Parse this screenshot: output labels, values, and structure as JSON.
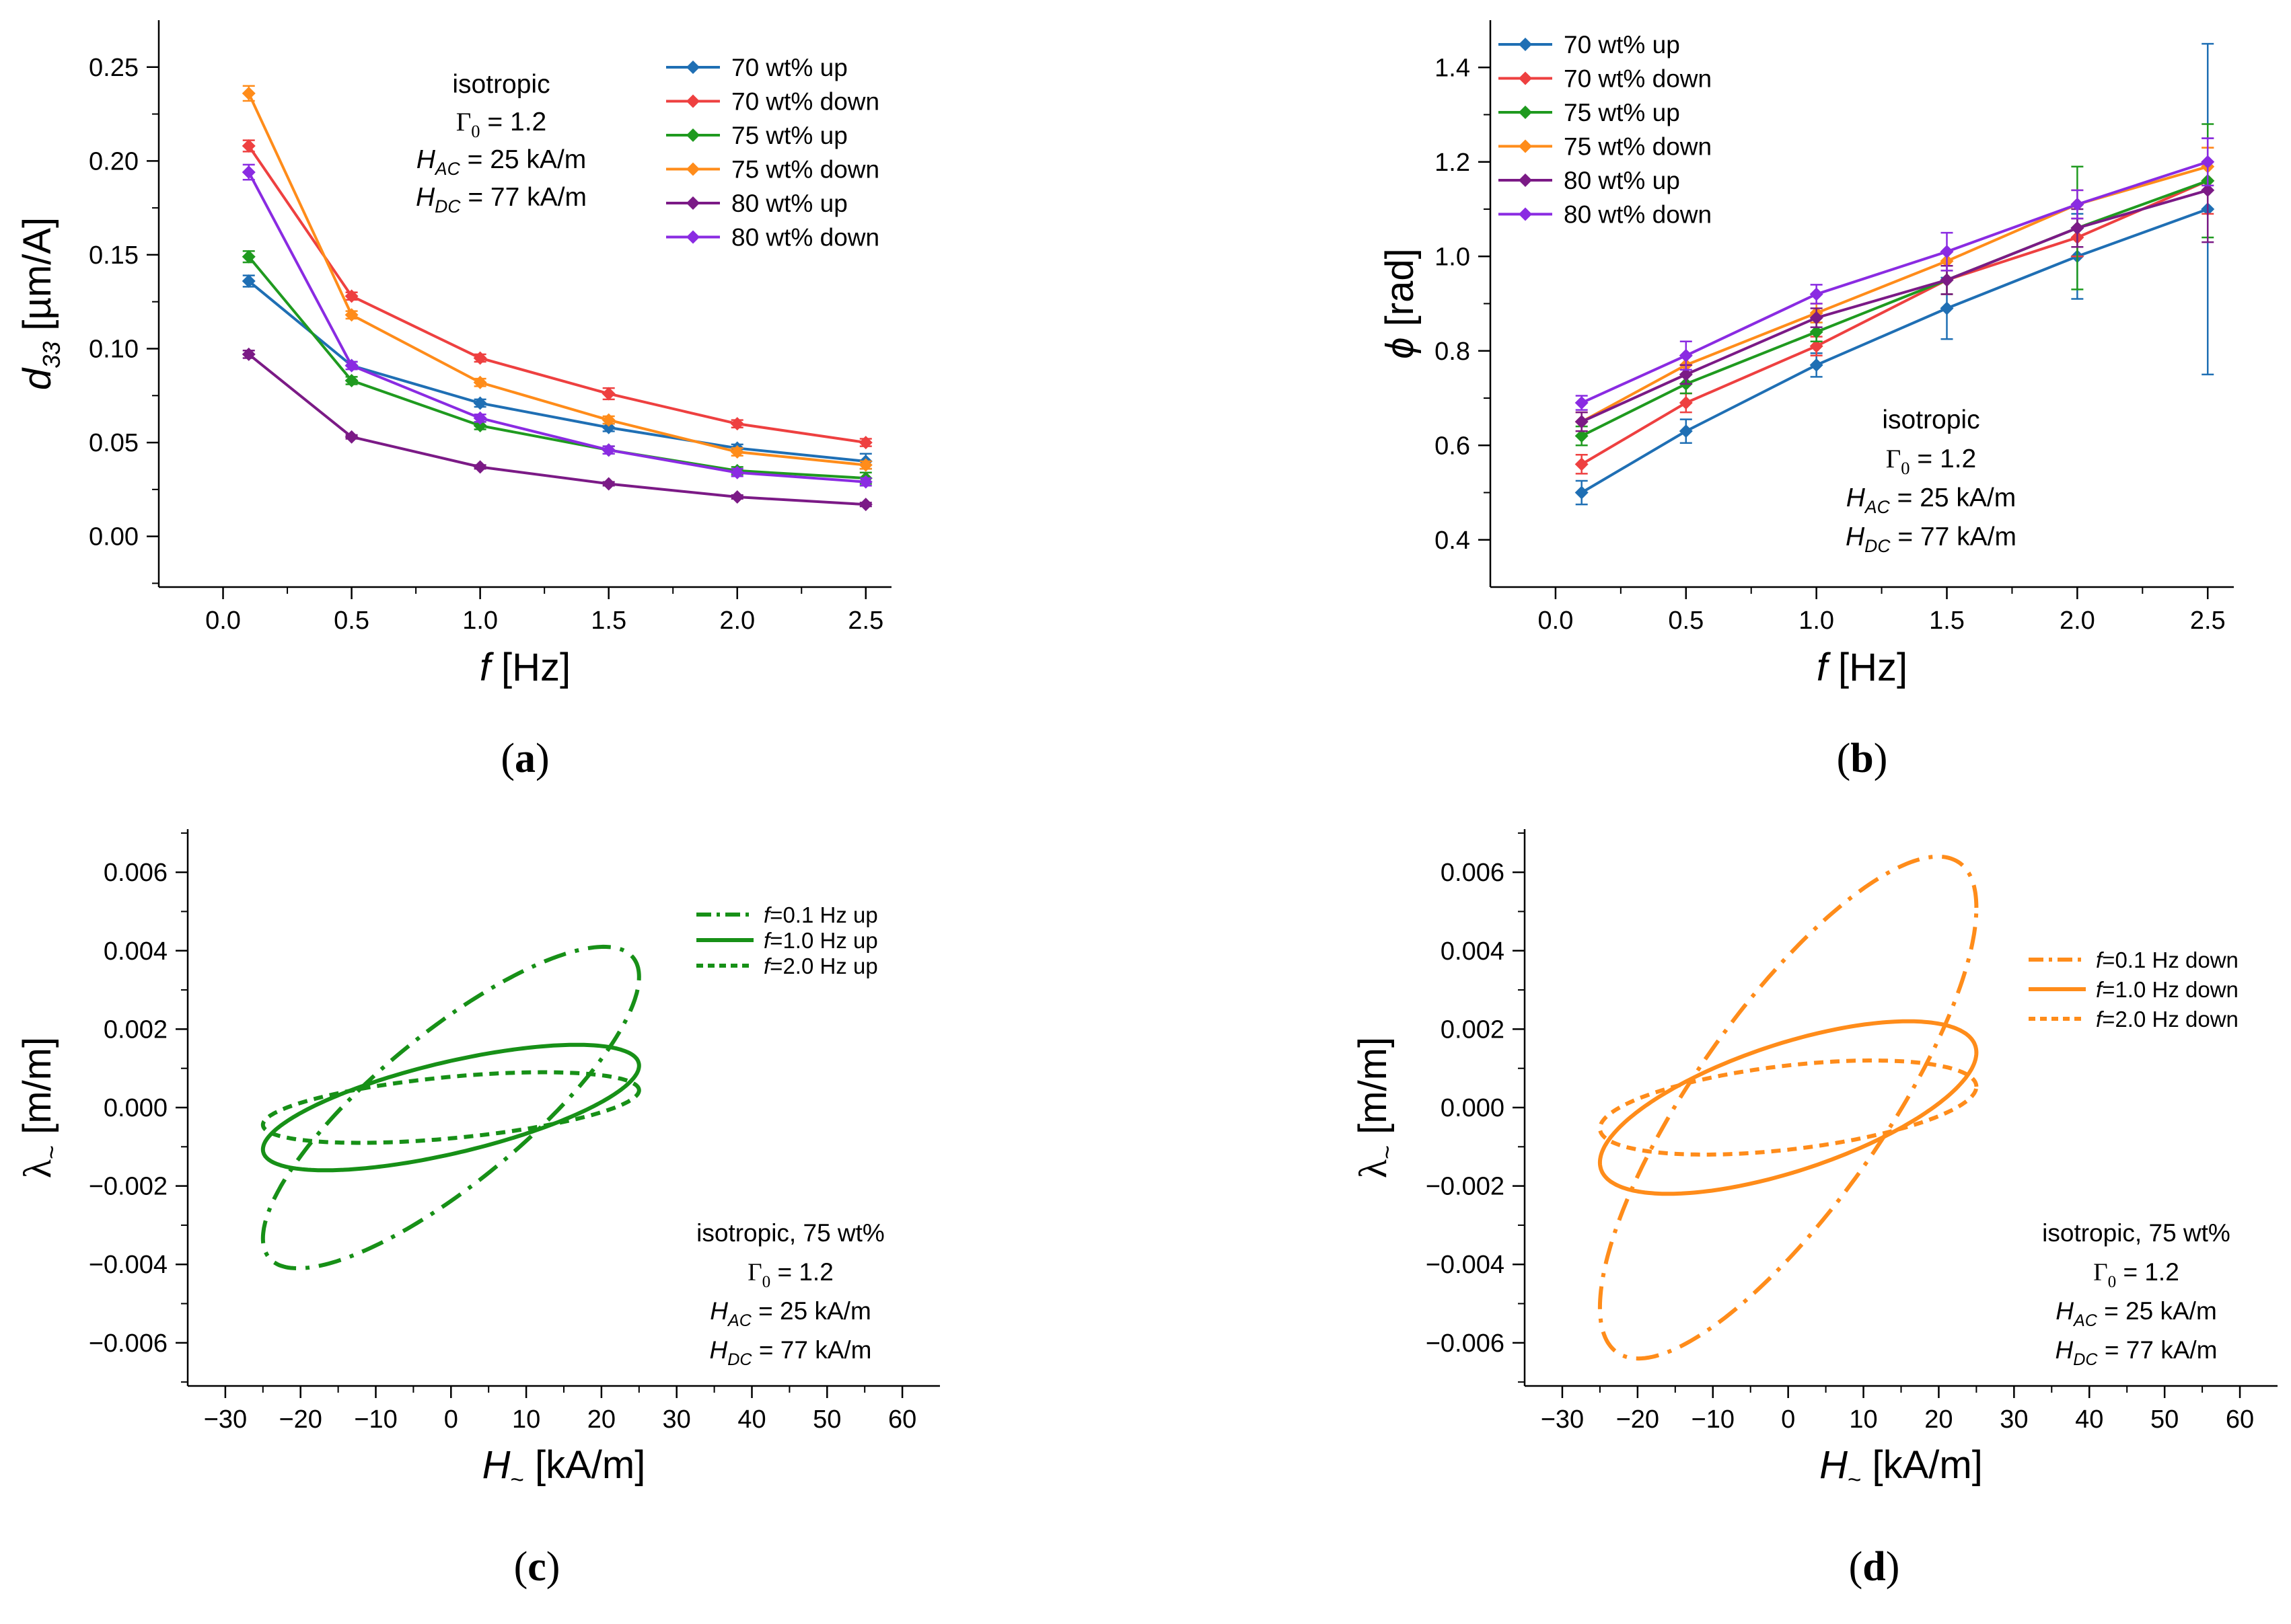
{
  "chart_data": [
    {
      "panel": "a",
      "caption": "(a)",
      "type": "line",
      "x_label": "f",
      "x_unit": "[Hz]",
      "y_label": "d",
      "y_label_sub": "33",
      "y_unit": "[µm/A]",
      "xlim": [
        -0.25,
        2.6
      ],
      "ylim": [
        -0.027,
        0.275
      ],
      "xticks": [
        0.0,
        0.5,
        1.0,
        1.5,
        2.0,
        2.5
      ],
      "xtick_labels": [
        "0.0",
        "0.5",
        "1.0",
        "1.5",
        "2.0",
        "2.5"
      ],
      "yticks": [
        0.0,
        0.05,
        0.1,
        0.15,
        0.2,
        0.25
      ],
      "ytick_labels": [
        "0.00",
        "0.05",
        "0.10",
        "0.15",
        "0.20",
        "0.25"
      ],
      "x": [
        0.1,
        0.5,
        1.0,
        1.5,
        2.0,
        2.5
      ],
      "annotation": [
        "isotropic",
        "Γ₀ = 1.2",
        "H_AC = 25 kA/m",
        "H_DC = 77 kA/m"
      ],
      "legend_position": "top-right",
      "series": [
        {
          "name": "70 wt% up",
          "color": "#1f6fb4",
          "values": [
            0.136,
            0.091,
            0.071,
            0.058,
            0.047,
            0.04
          ],
          "errors": [
            0.003,
            0.002,
            0.002,
            0.002,
            0.002,
            0.004
          ]
        },
        {
          "name": "70 wt% down",
          "color": "#ee4040",
          "values": [
            0.208,
            0.128,
            0.095,
            0.076,
            0.06,
            0.05
          ],
          "errors": [
            0.003,
            0.002,
            0.002,
            0.003,
            0.002,
            0.002
          ]
        },
        {
          "name": "75 wt% up",
          "color": "#1f9a1f",
          "values": [
            0.149,
            0.083,
            0.059,
            0.046,
            0.035,
            0.031
          ],
          "errors": [
            0.003,
            0.002,
            0.002,
            0.002,
            0.002,
            0.003
          ]
        },
        {
          "name": "75 wt% down",
          "color": "#ff8c1a",
          "values": [
            0.236,
            0.118,
            0.082,
            0.062,
            0.045,
            0.038
          ],
          "errors": [
            0.004,
            0.002,
            0.002,
            0.002,
            0.002,
            0.002
          ]
        },
        {
          "name": "80 wt% up",
          "color": "#7b1a86",
          "values": [
            0.097,
            0.053,
            0.037,
            0.028,
            0.021,
            0.017
          ],
          "errors": [
            0.002,
            0.001,
            0.001,
            0.001,
            0.001,
            0.001
          ]
        },
        {
          "name": "80 wt% down",
          "color": "#8a2be2",
          "values": [
            0.194,
            0.091,
            0.063,
            0.046,
            0.034,
            0.029
          ],
          "errors": [
            0.004,
            0.002,
            0.002,
            0.002,
            0.002,
            0.002
          ]
        }
      ]
    },
    {
      "panel": "b",
      "caption": "(b)",
      "type": "line",
      "x_label": "f",
      "x_unit": "[Hz]",
      "y_label": "ϕ",
      "y_unit": "[rad]",
      "xlim": [
        -0.25,
        2.6
      ],
      "ylim": [
        0.3,
        1.5
      ],
      "xticks": [
        0.0,
        0.5,
        1.0,
        1.5,
        2.0,
        2.5
      ],
      "xtick_labels": [
        "0.0",
        "0.5",
        "1.0",
        "1.5",
        "2.0",
        "2.5"
      ],
      "yticks": [
        0.4,
        0.6,
        0.8,
        1.0,
        1.2,
        1.4
      ],
      "ytick_labels": [
        "0.4",
        "0.6",
        "0.8",
        "1.0",
        "1.2",
        "1.4"
      ],
      "x": [
        0.1,
        0.5,
        1.0,
        1.5,
        2.0,
        2.5
      ],
      "annotation": [
        "isotropic",
        "Γ₀ = 1.2",
        "H_AC = 25 kA/m",
        "H_DC = 77 kA/m"
      ],
      "legend_position": "top-left",
      "series": [
        {
          "name": "70 wt% up",
          "color": "#1f6fb4",
          "values": [
            0.5,
            0.63,
            0.77,
            0.89,
            1.0,
            1.1
          ],
          "errors": [
            0.025,
            0.025,
            0.025,
            0.065,
            0.09,
            0.35
          ]
        },
        {
          "name": "70 wt% down",
          "color": "#ee4040",
          "values": [
            0.56,
            0.69,
            0.81,
            0.95,
            1.04,
            1.16
          ],
          "errors": [
            0.02,
            0.02,
            0.02,
            0.03,
            0.04,
            0.07
          ]
        },
        {
          "name": "75 wt% up",
          "color": "#1f9a1f",
          "values": [
            0.62,
            0.73,
            0.84,
            0.95,
            1.06,
            1.16
          ],
          "errors": [
            0.02,
            0.02,
            0.02,
            0.03,
            0.13,
            0.12
          ]
        },
        {
          "name": "75 wt% down",
          "color": "#ff8c1a",
          "values": [
            0.65,
            0.77,
            0.88,
            0.99,
            1.11,
            1.19
          ],
          "errors": [
            0.02,
            0.02,
            0.02,
            0.02,
            0.03,
            0.04
          ]
        },
        {
          "name": "80 wt% up",
          "color": "#7b1a86",
          "values": [
            0.65,
            0.75,
            0.87,
            0.95,
            1.06,
            1.14
          ],
          "errors": [
            0.02,
            0.02,
            0.02,
            0.03,
            0.04,
            0.11
          ]
        },
        {
          "name": "80 wt% down",
          "color": "#8a2be2",
          "values": [
            0.69,
            0.79,
            0.92,
            1.01,
            1.11,
            1.2
          ],
          "errors": [
            0.015,
            0.03,
            0.02,
            0.04,
            0.03,
            0.05
          ]
        }
      ]
    },
    {
      "panel": "c",
      "caption": "(c)",
      "type": "line",
      "x_label": "H",
      "x_label_sub": "~",
      "x_unit": "[kA/m]",
      "y_label": "λ",
      "y_label_sub": "~",
      "y_unit": "[m/m]",
      "xlim": [
        -35,
        65
      ],
      "ylim": [
        -0.0071,
        0.0071
      ],
      "xticks": [
        -30,
        -20,
        -10,
        0,
        10,
        20,
        30,
        40,
        50,
        60
      ],
      "xtick_labels": [
        "−30",
        "−20",
        "−10",
        "0",
        "10",
        "20",
        "30",
        "40",
        "50",
        "60"
      ],
      "yticks": [
        -0.006,
        -0.004,
        -0.002,
        0.0,
        0.002,
        0.004,
        0.006
      ],
      "ytick_labels": [
        "−0.006",
        "−0.004",
        "−0.002",
        "0.000",
        "0.002",
        "0.004",
        "0.006"
      ],
      "annotation": [
        "isotropic, 75 wt%",
        "Γ₀ = 1.2",
        "H_AC = 25 kA/m",
        "H_DC = 77 kA/m"
      ],
      "legend_position": "top-right",
      "series": [
        {
          "name": "f=0.1 Hz up",
          "color": "#179017",
          "dash": "dashdot",
          "H_amplitude": 25,
          "lambda_amplitude": 0.0041,
          "phase_rad": 0.62
        },
        {
          "name": "f=1.0 Hz up",
          "color": "#179017",
          "dash": "solid",
          "H_amplitude": 25,
          "lambda_amplitude": 0.0016,
          "phase_rad": 0.84
        },
        {
          "name": "f=2.0 Hz up",
          "color": "#179017",
          "dash": "dashed",
          "H_amplitude": 25,
          "lambda_amplitude": 0.0009,
          "phase_rad": 1.06
        }
      ]
    },
    {
      "panel": "d",
      "caption": "(d)",
      "type": "line",
      "x_label": "H",
      "x_label_sub": "~",
      "x_unit": "[kA/m]",
      "y_label": "λ",
      "y_label_sub": "~",
      "y_unit": "[m/m]",
      "xlim": [
        -35,
        65
      ],
      "ylim": [
        -0.0071,
        0.0071
      ],
      "xticks": [
        -30,
        -20,
        -10,
        0,
        10,
        20,
        30,
        40,
        50,
        60
      ],
      "xtick_labels": [
        "−30",
        "−20",
        "−10",
        "0",
        "10",
        "20",
        "30",
        "40",
        "50",
        "60"
      ],
      "yticks": [
        -0.006,
        -0.004,
        -0.002,
        0.0,
        0.002,
        0.004,
        0.006
      ],
      "ytick_labels": [
        "−0.006",
        "−0.004",
        "−0.002",
        "0.000",
        "0.002",
        "0.004",
        "0.006"
      ],
      "annotation": [
        "isotropic, 75 wt%",
        "Γ₀ = 1.2",
        "H_AC = 25 kA/m",
        "H_DC = 77 kA/m"
      ],
      "legend_position": "right",
      "series": [
        {
          "name": "f=0.1 Hz down",
          "color": "#ff8c1a",
          "dash": "dashdot",
          "H_amplitude": 25,
          "lambda_amplitude": 0.0064,
          "phase_rad": 0.65
        },
        {
          "name": "f=1.0 Hz down",
          "color": "#ff8c1a",
          "dash": "solid",
          "H_amplitude": 25,
          "lambda_amplitude": 0.0022,
          "phase_rad": 0.88
        },
        {
          "name": "f=2.0 Hz down",
          "color": "#ff8c1a",
          "dash": "dashed",
          "H_amplitude": 25,
          "lambda_amplitude": 0.0012,
          "phase_rad": 1.11
        }
      ]
    }
  ]
}
